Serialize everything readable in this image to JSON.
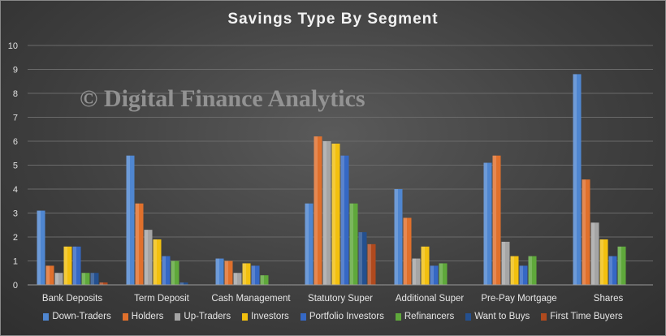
{
  "chart_data": {
    "type": "bar",
    "title": "Savings Type By Segment",
    "watermark": "© Digital Finance Analytics",
    "categories": [
      "Bank Deposits",
      "Term Deposit",
      "Cash Management",
      "Statutory Super",
      "Additional Super",
      "Pre-Pay Mortgage",
      "Shares"
    ],
    "ylim": [
      0,
      10
    ],
    "yticks": [
      0,
      1,
      2,
      3,
      4,
      5,
      6,
      7,
      8,
      9,
      10
    ],
    "grid": true,
    "legend_position": "bottom",
    "series": [
      {
        "name": "Down-Traders",
        "color": "#4f86d0",
        "values": [
          3.1,
          5.4,
          1.1,
          3.4,
          4.0,
          5.1,
          8.8
        ]
      },
      {
        "name": "Holders",
        "color": "#e0702c",
        "values": [
          0.8,
          3.4,
          1.0,
          6.2,
          2.8,
          5.4,
          4.4
        ]
      },
      {
        "name": "Up-Traders",
        "color": "#a5a5a5",
        "values": [
          0.5,
          2.3,
          0.5,
          6.0,
          1.1,
          1.8,
          2.6
        ]
      },
      {
        "name": "Investors",
        "color": "#f2c00f",
        "values": [
          1.6,
          1.9,
          0.9,
          5.9,
          1.6,
          1.2,
          1.9
        ]
      },
      {
        "name": "Portfolio Investors",
        "color": "#3568c4",
        "values": [
          1.6,
          1.2,
          0.8,
          5.4,
          0.8,
          0.8,
          1.2
        ]
      },
      {
        "name": "Refinancers",
        "color": "#5fa83b",
        "values": [
          0.5,
          1.0,
          0.4,
          3.4,
          0.9,
          1.2,
          1.6
        ]
      },
      {
        "name": "Want to Buys",
        "color": "#24508f",
        "values": [
          0.5,
          0.1,
          0.0,
          2.2,
          0.0,
          0.0,
          0.0
        ]
      },
      {
        "name": "First Time Buyers",
        "color": "#b04a1e",
        "values": [
          0.1,
          0.0,
          0.0,
          1.7,
          0.0,
          0.0,
          0.0
        ]
      }
    ]
  }
}
